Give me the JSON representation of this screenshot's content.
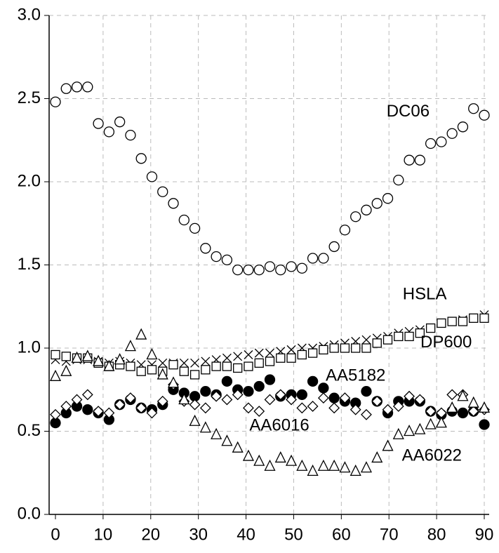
{
  "chart_data": {
    "type": "scatter",
    "x": [
      0,
      2.25,
      4.5,
      6.75,
      9,
      11.25,
      13.5,
      15.75,
      18,
      20.25,
      22.5,
      24.75,
      27,
      29.25,
      31.5,
      33.75,
      36,
      38.25,
      40.5,
      42.75,
      45,
      47.25,
      49.5,
      51.75,
      54,
      56.25,
      58.5,
      60.75,
      63,
      65.25,
      67.5,
      69.75,
      72,
      74.25,
      76.5,
      78.75,
      81,
      83.25,
      85.5,
      87.75,
      90
    ],
    "xlim": [
      0,
      90
    ],
    "xticks": [
      0,
      10,
      20,
      30,
      40,
      50,
      60,
      70,
      80,
      90
    ],
    "ylim": [
      0,
      3
    ],
    "yticks": [
      {
        "value": 0,
        "label": "0.0"
      },
      0.5,
      {
        "value": 1,
        "label": "1.0"
      },
      1.5,
      {
        "value": 2,
        "label": "2.0"
      },
      2.5,
      {
        "value": 3,
        "label": "3.0"
      }
    ],
    "grid": true,
    "series": [
      {
        "name": "DC06",
        "marker": "circle",
        "color": "#000000",
        "filled": false,
        "values": [
          2.48,
          2.56,
          2.57,
          2.57,
          2.35,
          2.3,
          2.36,
          2.28,
          2.14,
          2.03,
          1.94,
          1.87,
          1.77,
          1.72,
          1.6,
          1.55,
          1.53,
          1.47,
          1.47,
          1.47,
          1.49,
          1.47,
          1.49,
          1.48,
          1.54,
          1.54,
          1.61,
          1.71,
          1.79,
          1.83,
          1.87,
          1.9,
          2.01,
          2.13,
          2.13,
          2.23,
          2.24,
          2.29,
          2.33,
          2.44,
          2.4
        ]
      },
      {
        "name": "HSLA",
        "marker": "cross",
        "color": "#000000",
        "filled": false,
        "values": [
          0.93,
          0.92,
          0.93,
          0.93,
          0.92,
          0.91,
          0.92,
          0.91,
          0.9,
          0.9,
          0.91,
          0.91,
          0.91,
          0.91,
          0.92,
          0.93,
          0.94,
          0.95,
          0.96,
          0.97,
          0.97,
          0.98,
          0.99,
          1.0,
          1.0,
          1.01,
          1.02,
          1.03,
          1.04,
          1.05,
          1.06,
          1.07,
          1.09,
          1.1,
          1.11,
          1.12,
          1.15,
          1.16,
          1.17,
          1.18,
          1.2
        ]
      },
      {
        "name": "DP600",
        "marker": "square",
        "color": "#000000",
        "filled": false,
        "values": [
          0.96,
          0.95,
          0.94,
          0.94,
          0.91,
          0.89,
          0.9,
          0.89,
          0.86,
          0.87,
          0.86,
          0.9,
          0.86,
          0.84,
          0.87,
          0.89,
          0.89,
          0.88,
          0.89,
          0.91,
          0.92,
          0.94,
          0.94,
          0.96,
          0.97,
          0.99,
          1.0,
          1.0,
          1.0,
          1.0,
          1.03,
          1.05,
          1.07,
          1.07,
          1.09,
          1.12,
          1.15,
          1.16,
          1.16,
          1.18,
          1.18
        ]
      },
      {
        "name": "AA5182",
        "marker": "circle",
        "color": "#000000",
        "filled": true,
        "values": [
          0.55,
          0.61,
          0.65,
          0.63,
          0.61,
          0.57,
          0.66,
          0.69,
          0.64,
          0.63,
          0.66,
          0.75,
          0.73,
          0.71,
          0.74,
          0.72,
          0.8,
          0.75,
          0.74,
          0.77,
          0.81,
          0.71,
          0.72,
          0.72,
          0.8,
          0.76,
          0.7,
          0.68,
          0.67,
          0.74,
          0.68,
          0.61,
          0.68,
          0.68,
          0.68,
          0.62,
          0.6,
          0.62,
          0.61,
          0.62,
          0.54
        ]
      },
      {
        "name": "AA6016",
        "marker": "diamond",
        "color": "#000000",
        "filled": false,
        "values": [
          0.6,
          0.65,
          0.69,
          0.72,
          0.62,
          0.61,
          0.66,
          0.7,
          0.64,
          0.61,
          0.68,
          0.78,
          0.68,
          0.66,
          0.64,
          0.71,
          0.69,
          0.72,
          0.64,
          0.62,
          0.69,
          0.72,
          0.69,
          0.64,
          0.65,
          0.7,
          0.64,
          0.7,
          0.63,
          0.6,
          0.68,
          0.63,
          0.65,
          0.71,
          0.69,
          0.62,
          0.61,
          0.72,
          0.72,
          0.62,
          0.63
        ]
      },
      {
        "name": "AA6022",
        "marker": "triangle",
        "color": "#000000",
        "filled": false,
        "values": [
          0.83,
          0.86,
          0.94,
          0.95,
          0.92,
          0.89,
          0.93,
          1.01,
          1.08,
          0.96,
          0.84,
          0.79,
          0.69,
          0.56,
          0.52,
          0.48,
          0.44,
          0.4,
          0.35,
          0.32,
          0.29,
          0.34,
          0.32,
          0.29,
          0.26,
          0.29,
          0.29,
          0.28,
          0.26,
          0.28,
          0.34,
          0.41,
          0.48,
          0.5,
          0.51,
          0.54,
          0.55,
          0.64,
          0.71,
          0.67,
          0.64
        ]
      }
    ]
  }
}
